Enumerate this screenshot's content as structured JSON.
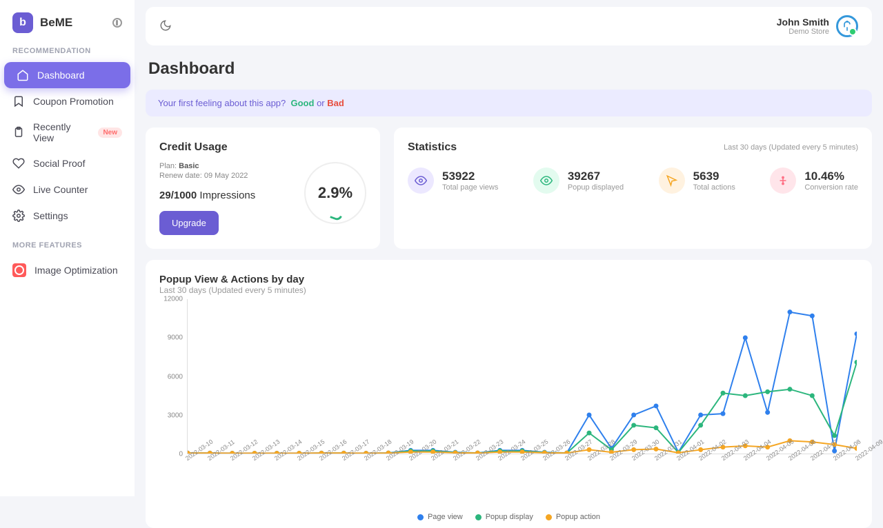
{
  "brand": "BeME",
  "sidebar": {
    "section1": "RECOMMENDATION",
    "section2": "MORE FEATURES",
    "items": [
      {
        "label": "Dashboard",
        "icon": "home",
        "active": true
      },
      {
        "label": "Coupon Promotion",
        "icon": "bookmark"
      },
      {
        "label": "Recently View",
        "icon": "clipboard",
        "badge": "New"
      },
      {
        "label": "Social Proof",
        "icon": "heart"
      },
      {
        "label": "Live Counter",
        "icon": "eye"
      },
      {
        "label": "Settings",
        "icon": "gear"
      }
    ],
    "more": [
      {
        "label": "Image Optimization",
        "icon": "image"
      }
    ]
  },
  "user": {
    "name": "John Smith",
    "sub": "Demo Store"
  },
  "page_title": "Dashboard",
  "feedback": {
    "q": "Your first feeling about this app?",
    "good": "Good",
    "or": "or",
    "bad": "Bad"
  },
  "credit": {
    "title": "Credit Usage",
    "plan_label": "Plan:",
    "plan_name": "Basic",
    "renew_label": "Renew date:",
    "renew_date": "09 May 2022",
    "used": 29,
    "limit": 1000,
    "unit": "Impressions",
    "pct": "2.9%",
    "upgrade": "Upgrade"
  },
  "stats": {
    "title": "Statistics",
    "sub": "Last 30 days (Updated every 5 minutes)",
    "cells": [
      {
        "value": "53922",
        "label": "Total page views",
        "bg": "#ece8ff",
        "fg": "#6b5dd3"
      },
      {
        "value": "39267",
        "label": "Popup displayed",
        "bg": "#e3fbef",
        "fg": "#2cb67d"
      },
      {
        "value": "5639",
        "label": "Total actions",
        "bg": "#fff2e0",
        "fg": "#f5a623"
      },
      {
        "value": "10.46%",
        "label": "Conversion rate",
        "bg": "#ffe5ea",
        "fg": "#ff6b81"
      }
    ]
  },
  "chart": {
    "title": "Popup View & Actions by day",
    "sub": "Last 30 days (Updated every 5 minutes)",
    "type": "line",
    "ylim": [
      0,
      12000
    ],
    "yticks": [
      0,
      3000,
      6000,
      9000,
      12000
    ],
    "x": [
      "2022-03-10",
      "2022-03-11",
      "2022-03-12",
      "2022-03-13",
      "2022-03-14",
      "2022-03-15",
      "2022-03-16",
      "2022-03-17",
      "2022-03-18",
      "2022-03-19",
      "2022-03-20",
      "2022-03-21",
      "2022-03-22",
      "2022-03-23",
      "2022-03-24",
      "2022-03-25",
      "2022-03-26",
      "2022-03-27",
      "2022-03-28",
      "2022-03-29",
      "2022-03-30",
      "2022-03-31",
      "2022-04-01",
      "2022-04-02",
      "2022-04-03",
      "2022-04-04",
      "2022-04-05",
      "2022-04-06",
      "2022-04-07",
      "2022-04-08",
      "2022-04-09"
    ],
    "series": [
      {
        "name": "Page view",
        "color": "#2f80ed",
        "marker": "circle",
        "data": [
          50,
          40,
          30,
          30,
          30,
          30,
          40,
          40,
          30,
          50,
          250,
          250,
          100,
          50,
          250,
          250,
          100,
          50,
          3000,
          400,
          3000,
          3700,
          100,
          3000,
          3100,
          9000,
          3200,
          11000,
          10700,
          200,
          9300
        ]
      },
      {
        "name": "Popup display",
        "color": "#2cb67d",
        "marker": "circle",
        "data": [
          30,
          30,
          20,
          20,
          20,
          20,
          30,
          30,
          20,
          40,
          200,
          200,
          80,
          40,
          200,
          200,
          80,
          40,
          1600,
          300,
          2200,
          2000,
          80,
          2200,
          4700,
          4500,
          4800,
          5000,
          4500,
          1400,
          7100
        ]
      },
      {
        "name": "Popup action",
        "color": "#f5a623",
        "marker": "circle",
        "data": [
          40,
          35,
          25,
          25,
          25,
          25,
          35,
          35,
          25,
          45,
          120,
          120,
          60,
          45,
          120,
          120,
          60,
          45,
          300,
          100,
          300,
          350,
          60,
          300,
          500,
          600,
          500,
          1000,
          900,
          700,
          400
        ]
      }
    ],
    "legend": [
      "Page view",
      "Popup display",
      "Popup action"
    ],
    "marker_size": 3.5
  },
  "colors": {
    "accent": "#6b5dd3"
  }
}
